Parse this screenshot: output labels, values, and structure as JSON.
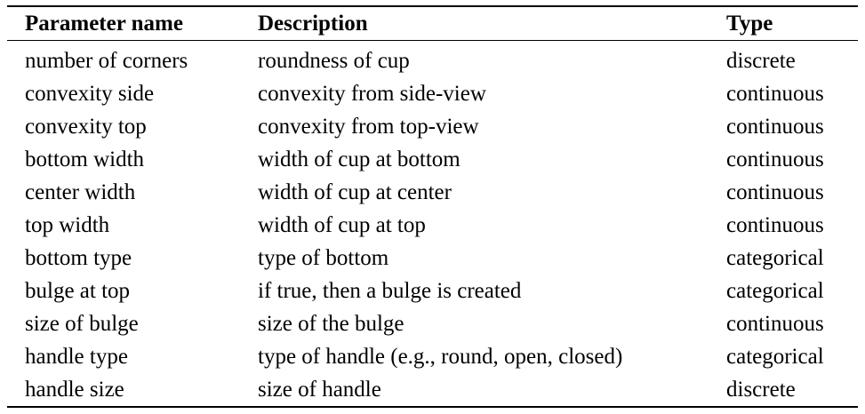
{
  "table": {
    "headers": [
      "Parameter name",
      "Description",
      "Type"
    ],
    "rows": [
      [
        "number of corners",
        "roundness of cup",
        "discrete"
      ],
      [
        "convexity side",
        "convexity from side-view",
        "continuous"
      ],
      [
        "convexity top",
        "convexity from top-view",
        "continuous"
      ],
      [
        "bottom width",
        "width of cup at bottom",
        "continuous"
      ],
      [
        "center width",
        "width of cup at center",
        "continuous"
      ],
      [
        "top width",
        "width of cup at top",
        "continuous"
      ],
      [
        "bottom type",
        "type of bottom",
        "categorical"
      ],
      [
        "bulge at top",
        "if true, then a bulge is created",
        "categorical"
      ],
      [
        "size of bulge",
        "size of the bulge",
        "continuous"
      ],
      [
        "handle type",
        "type of handle (e.g., round, open, closed)",
        "categorical"
      ],
      [
        "handle size",
        "size of handle",
        "discrete"
      ]
    ]
  }
}
